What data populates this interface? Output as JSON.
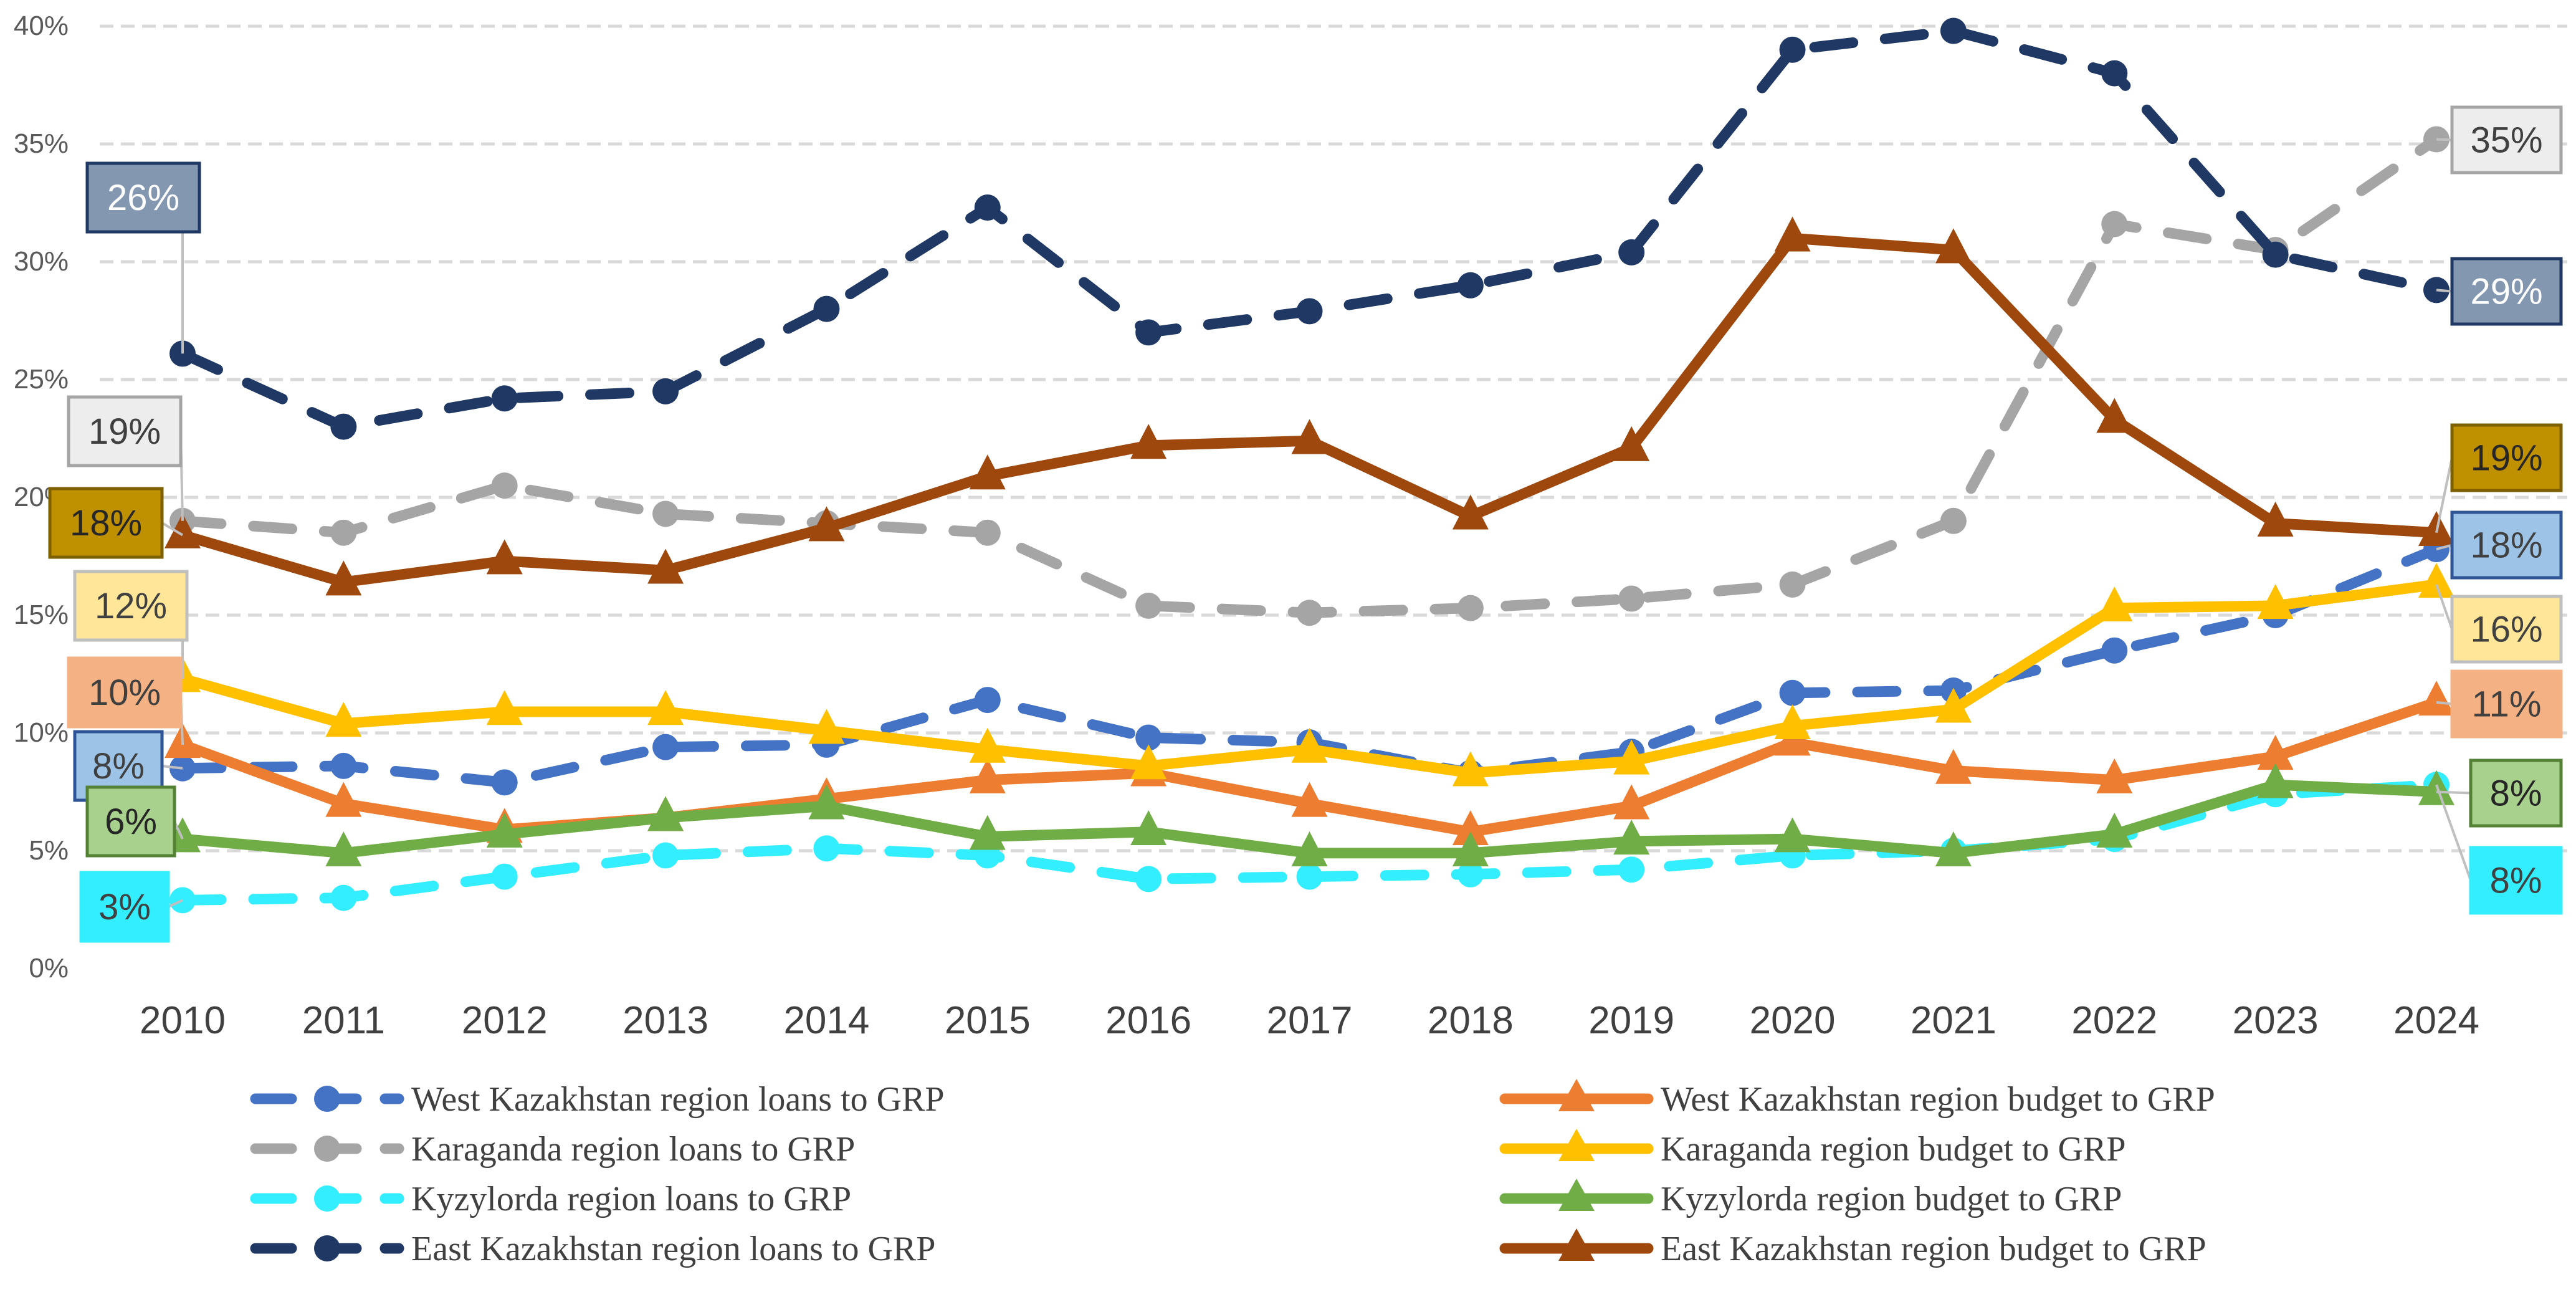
{
  "chart_data": {
    "type": "line",
    "title": "",
    "xlabel": "",
    "ylabel": "",
    "ylim": [
      0,
      40
    ],
    "y_ticks": [
      "0%",
      "5%",
      "10%",
      "15%",
      "20%",
      "25%",
      "30%",
      "35%",
      "40%"
    ],
    "y_tick_values": [
      0,
      5,
      10,
      15,
      20,
      25,
      30,
      35,
      40
    ],
    "grid": true,
    "legend_position": "bottom",
    "categories": [
      "2010",
      "2011",
      "2012",
      "2013",
      "2014",
      "2015",
      "2016",
      "2017",
      "2018",
      "2019",
      "2020",
      "2021",
      "2022",
      "2023",
      "2024"
    ],
    "series": [
      {
        "name": "West Kazakhstan region loans to GRP",
        "style": "dashed",
        "marker": "circle",
        "color": "#4472C4",
        "values": [
          8.5,
          8.6,
          7.9,
          9.4,
          9.5,
          11.4,
          9.8,
          9.6,
          8.3,
          9.2,
          11.7,
          11.8,
          13.5,
          15.0,
          17.8
        ]
      },
      {
        "name": "Karaganda region loans to GRP",
        "style": "dashed",
        "marker": "circle",
        "color": "#A5A5A5",
        "values": [
          19.0,
          18.5,
          20.5,
          19.3,
          18.9,
          18.5,
          15.4,
          15.1,
          15.3,
          15.7,
          16.3,
          19.0,
          31.6,
          30.5,
          35.2
        ]
      },
      {
        "name": "Kyzylorda region loans to GRP",
        "style": "dashed",
        "marker": "circle",
        "color": "#33EEFF",
        "values": [
          2.9,
          3.0,
          3.9,
          4.8,
          5.1,
          4.8,
          3.8,
          3.9,
          4.0,
          4.2,
          4.8,
          5.0,
          5.5,
          7.4,
          7.8
        ]
      },
      {
        "name": "East Kazakhstan region loans to GRP",
        "style": "dashed",
        "marker": "circle",
        "color": "#203864",
        "values": [
          26.1,
          23.0,
          24.2,
          24.5,
          28.0,
          32.3,
          27.0,
          27.9,
          29.0,
          30.4,
          39.0,
          39.8,
          38.0,
          30.3,
          28.8
        ]
      },
      {
        "name": "West Kazakhstan region budget to GRP",
        "style": "solid",
        "marker": "triangle",
        "color": "#ED7D31",
        "values": [
          9.5,
          7.0,
          5.9,
          6.4,
          7.2,
          8.0,
          8.3,
          7.0,
          5.8,
          6.9,
          9.6,
          8.4,
          8.0,
          9.0,
          11.3
        ]
      },
      {
        "name": "Karaganda region budget to GRP",
        "style": "solid",
        "marker": "triangle",
        "color": "#FFC000",
        "values": [
          12.3,
          10.4,
          10.9,
          10.9,
          10.1,
          9.3,
          8.6,
          9.3,
          8.3,
          8.8,
          10.3,
          11.0,
          15.3,
          15.4,
          16.3
        ]
      },
      {
        "name": "Kyzylorda region budget to GRP",
        "style": "solid",
        "marker": "triangle",
        "color": "#70AD47",
        "values": [
          5.5,
          4.9,
          5.7,
          6.4,
          6.9,
          5.6,
          5.8,
          4.9,
          4.9,
          5.4,
          5.5,
          4.9,
          5.7,
          7.8,
          7.5
        ]
      },
      {
        "name": "East Kazakhstan region budget to GRP",
        "style": "solid",
        "marker": "triangle",
        "color": "#9E480E",
        "values": [
          18.4,
          16.4,
          17.3,
          16.9,
          18.7,
          20.9,
          22.2,
          22.4,
          19.2,
          22.1,
          31.0,
          30.5,
          23.3,
          18.9,
          18.5
        ]
      }
    ],
    "annotations": [
      {
        "text": "26%",
        "series": "East Kazakhstan region loans to GRP",
        "year": "2010",
        "fill": "#8497B0",
        "border": "#203864",
        "text_color": "#FFFFFF"
      },
      {
        "text": "19%",
        "series": "Karaganda region loans to GRP",
        "year": "2010",
        "fill": "#EDEDED",
        "border": "#A5A5A5",
        "text_color": "#404040"
      },
      {
        "text": "18%",
        "series": "East Kazakhstan region budget to GRP",
        "year": "2010",
        "fill": "#BF9000",
        "border": "#7F6000",
        "text_color": "#262626"
      },
      {
        "text": "12%",
        "series": "Karaganda region budget to GRP",
        "year": "2010",
        "fill": "#FFE699",
        "border": "#BFBFBF",
        "text_color": "#404040"
      },
      {
        "text": "10%",
        "series": "West Kazakhstan region budget to GRP",
        "year": "2010",
        "fill": "#F4B183",
        "border": "#F4B183",
        "text_color": "#404040"
      },
      {
        "text": "8%",
        "series": "West Kazakhstan region loans to GRP",
        "year": "2010",
        "fill": "#9DC3E6",
        "border": "#2F5597",
        "text_color": "#404040"
      },
      {
        "text": "6%",
        "series": "Kyzylorda region budget to GRP",
        "year": "2010",
        "fill": "#A9D18E",
        "border": "#548235",
        "text_color": "#262626"
      },
      {
        "text": "3%",
        "series": "Kyzylorda region loans to GRP",
        "year": "2010",
        "fill": "#33EEFF",
        "border": "#33EEFF",
        "text_color": "#404040"
      },
      {
        "text": "35%",
        "series": "Karaganda region loans to GRP",
        "year": "2024",
        "fill": "#EDEDED",
        "border": "#A5A5A5",
        "text_color": "#404040"
      },
      {
        "text": "29%",
        "series": "East Kazakhstan region loans to GRP",
        "year": "2024",
        "fill": "#8497B0",
        "border": "#203864",
        "text_color": "#FFFFFF"
      },
      {
        "text": "19%",
        "series": "East Kazakhstan region budget to GRP",
        "year": "2024",
        "fill": "#BF9000",
        "border": "#7F6000",
        "text_color": "#262626"
      },
      {
        "text": "18%",
        "series": "West Kazakhstan region loans to GRP",
        "year": "2024",
        "fill": "#9DC3E6",
        "border": "#2F5597",
        "text_color": "#404040"
      },
      {
        "text": "16%",
        "series": "Karaganda region budget to GRP",
        "year": "2024",
        "fill": "#FFE699",
        "border": "#BFBFBF",
        "text_color": "#404040"
      },
      {
        "text": "11%",
        "series": "West Kazakhstan region budget to GRP",
        "year": "2024",
        "fill": "#F4B183",
        "border": "#F4B183",
        "text_color": "#404040"
      },
      {
        "text": "8%",
        "series": "Kyzylorda region budget to GRP",
        "year": "2024",
        "fill": "#A9D18E",
        "border": "#548235",
        "text_color": "#262626"
      },
      {
        "text": "8%",
        "series": "Kyzylorda region loans to GRP",
        "year": "2024",
        "fill": "#33EEFF",
        "border": "#33EEFF",
        "text_color": "#404040"
      }
    ]
  }
}
